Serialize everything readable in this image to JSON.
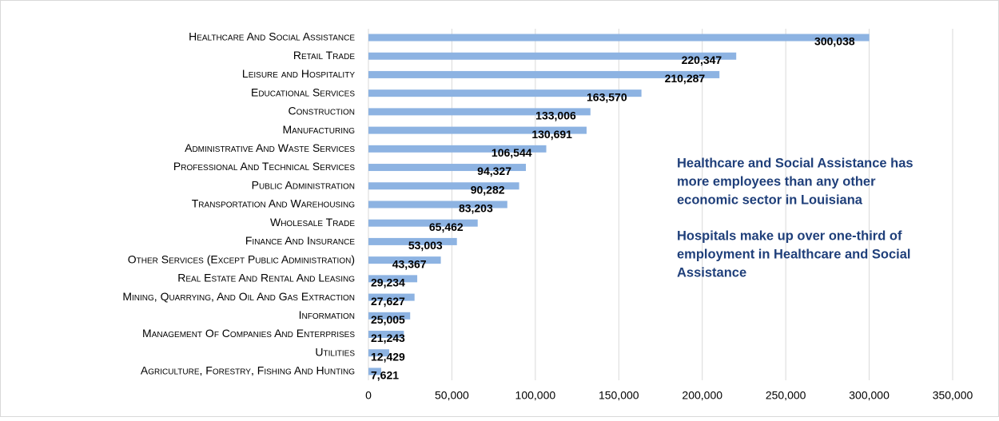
{
  "chart_data": {
    "type": "barh",
    "categories": [
      "Healthcare And Social Assistance",
      "Retail Trade",
      "Leisure and Hospitality",
      "Educational Services",
      "Construction",
      "Manufacturing",
      "Administrative And Waste Services",
      "Professional And Technical Services",
      "Public Administration",
      "Transportation And Warehousing",
      "Wholesale Trade",
      "Finance And Insurance",
      "Other Services (Except Public Administration)",
      "Real Estate And Rental And Leasing",
      "Mining, Quarrying, And Oil And Gas Extraction",
      "Information",
      "Management Of Companies And Enterprises",
      "Utilities",
      "Agriculture, Forestry, Fishing And Hunting"
    ],
    "values": [
      300038,
      220347,
      210287,
      163570,
      133006,
      130691,
      106544,
      94327,
      90282,
      83203,
      65462,
      53003,
      43367,
      29234,
      27627,
      25005,
      21243,
      12429,
      7621
    ],
    "value_labels": [
      "300,038",
      "220,347",
      "210,287",
      "163,570",
      "133,006",
      "130,691",
      "106,544",
      "94,327",
      "90,282",
      "83,203",
      "65,462",
      "53,003",
      "43,367",
      "29,234",
      "27,627",
      "25,005",
      "21,243",
      "12,429",
      "7,621"
    ],
    "color": "#8db3e2",
    "xlim": [
      0,
      350000
    ],
    "xticks": [
      0,
      {
        "value": 50000,
        "label": "50,000"
      },
      {
        "value": 100000,
        "label": "100,000"
      },
      {
        "value": 150000,
        "label": "150,000"
      },
      {
        "value": 200000,
        "label": "200,000"
      },
      {
        "value": 250000,
        "label": "250,000"
      },
      {
        "value": 300000,
        "label": "300,000"
      },
      {
        "value": 350000,
        "label": "350,000"
      }
    ],
    "grid": true,
    "annotations": [
      [
        "Healthcare and Social Assistance has",
        "more employees than any other",
        "economic sector in Louisiana"
      ],
      [
        "Hospitals make up over one-third of",
        "employment in Healthcare and Social",
        "Assistance"
      ]
    ]
  }
}
